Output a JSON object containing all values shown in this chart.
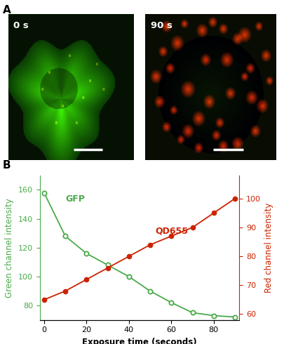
{
  "panel_a_label": "A",
  "panel_b_label": "B",
  "img1_label": "0 s",
  "img2_label": "90 s",
  "gfp_label": "GFP",
  "qd_label": "QD655",
  "xlabel": "Exposure time (seconds)",
  "ylabel_left": "Green channel intensity",
  "ylabel_right": "Red channel intensity",
  "gfp_color": "#4aaa4a",
  "qd_color": "#cc2200",
  "x_gfp": [
    0,
    10,
    20,
    30,
    40,
    50,
    60,
    70,
    80,
    90
  ],
  "y_gfp": [
    158,
    128,
    116,
    108,
    100,
    90,
    82,
    75,
    73,
    72
  ],
  "x_qd": [
    0,
    10,
    20,
    30,
    40,
    50,
    60,
    70,
    80,
    90
  ],
  "y_qd": [
    65,
    68,
    72,
    76,
    80,
    84,
    87,
    90,
    95,
    100
  ],
  "xlim": [
    -2,
    92
  ],
  "ylim_left": [
    70,
    170
  ],
  "ylim_right": [
    58,
    108
  ],
  "xticks": [
    0,
    20,
    40,
    60,
    80
  ],
  "yticks_left": [
    80,
    100,
    120,
    140,
    160
  ],
  "yticks_right": [
    60,
    70,
    80,
    90,
    100
  ],
  "scale_bar_color": "#ffffff",
  "label_color_white": "#ffffff",
  "axis_label_fontsize": 8.5,
  "tick_fontsize": 8,
  "annotation_fontsize": 9
}
